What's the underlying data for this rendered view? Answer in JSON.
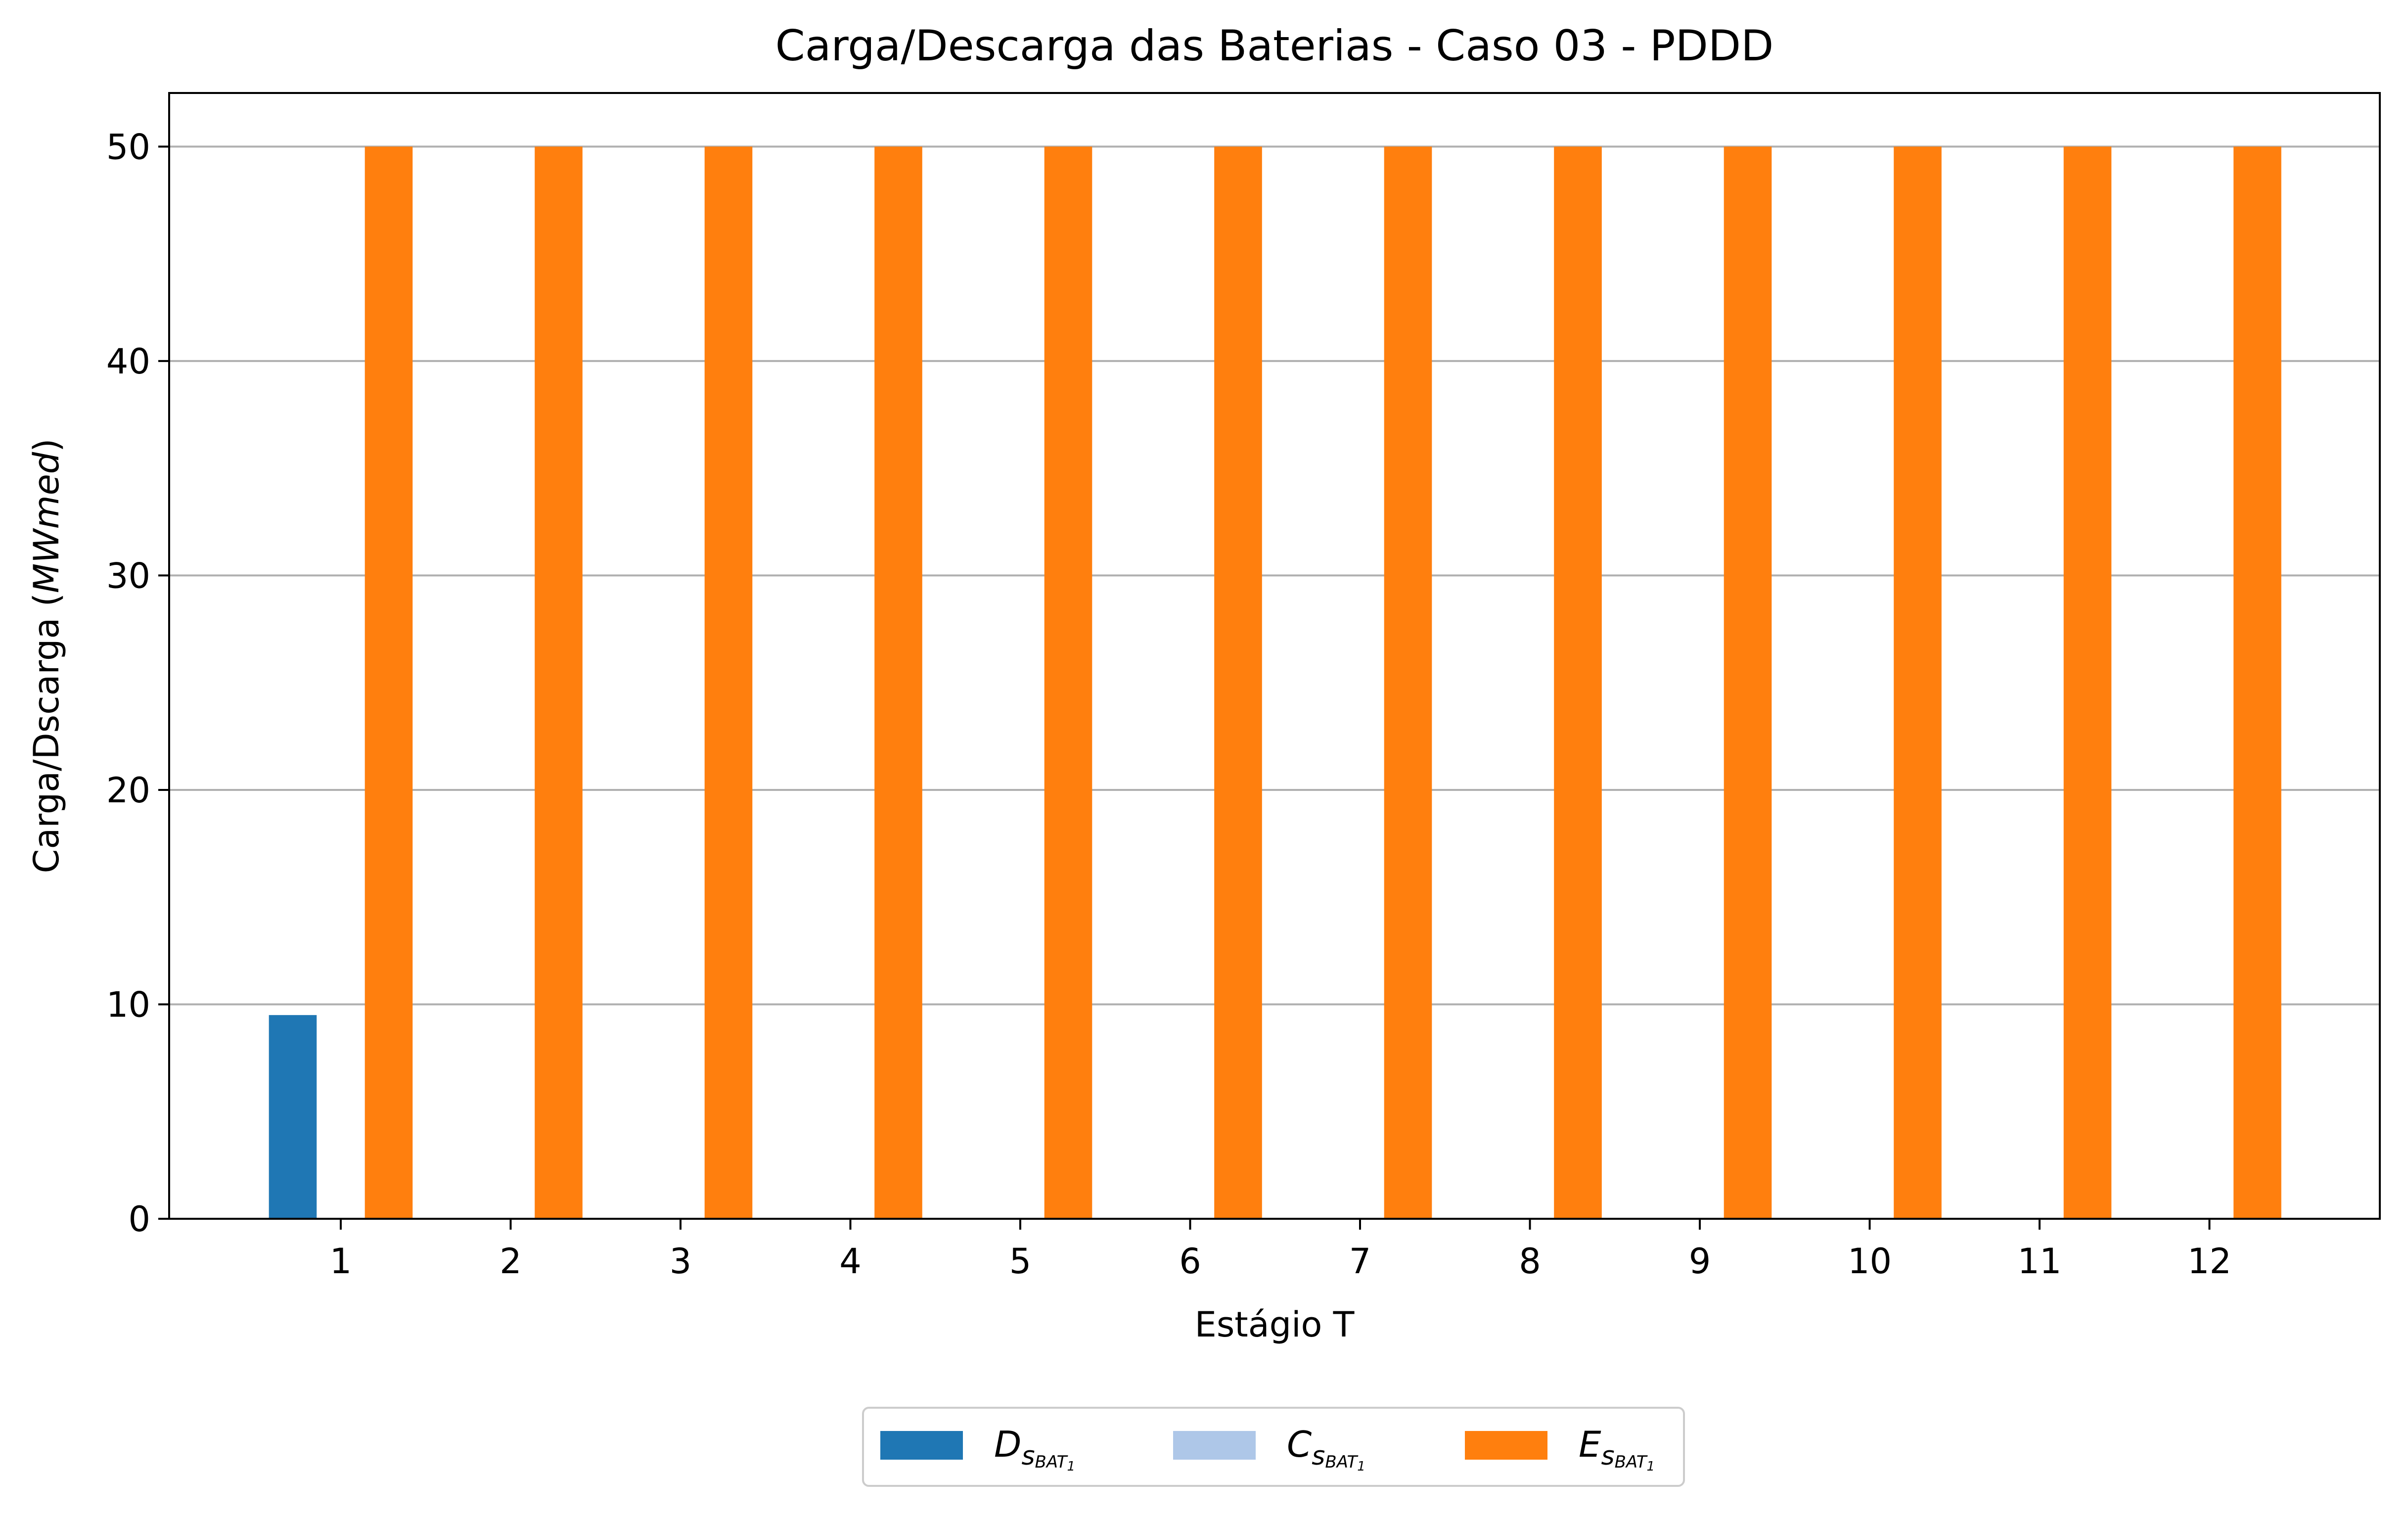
{
  "chart_data": {
    "type": "bar",
    "title": "Carga/Descarga das Baterias - Caso 03 - PDDD",
    "xlabel": "Estágio T",
    "ylabel": {
      "prefix": "Carga/Dscarga (",
      "unit": "MWmed",
      "suffix": ")"
    },
    "categories": [
      "1",
      "2",
      "3",
      "4",
      "5",
      "6",
      "7",
      "8",
      "9",
      "10",
      "11",
      "12"
    ],
    "ylim": [
      0,
      52.5
    ],
    "yticks": [
      0,
      10,
      20,
      30,
      40,
      50
    ],
    "grid": "y",
    "legend_position": "bottom-center",
    "series": [
      {
        "name_main": "D",
        "name_sub": "s",
        "name_subsub": "BAT",
        "name_subsubsub": "1",
        "color": "#1f77b4",
        "values": [
          9.5,
          0,
          0,
          0,
          0,
          0,
          0,
          0,
          0,
          0,
          0,
          0
        ]
      },
      {
        "name_main": "C",
        "name_sub": "s",
        "name_subsub": "BAT",
        "name_subsubsub": "1",
        "color": "#aec7e8",
        "values": [
          0,
          0,
          0,
          0,
          0,
          0,
          0,
          0,
          0,
          0,
          0,
          0
        ]
      },
      {
        "name_main": "E",
        "name_sub": "s",
        "name_subsub": "BAT",
        "name_subsubsub": "1",
        "color": "#ff7f0e",
        "values": [
          50,
          50,
          50,
          50,
          50,
          50,
          50,
          50,
          50,
          50,
          50,
          50
        ]
      }
    ]
  }
}
